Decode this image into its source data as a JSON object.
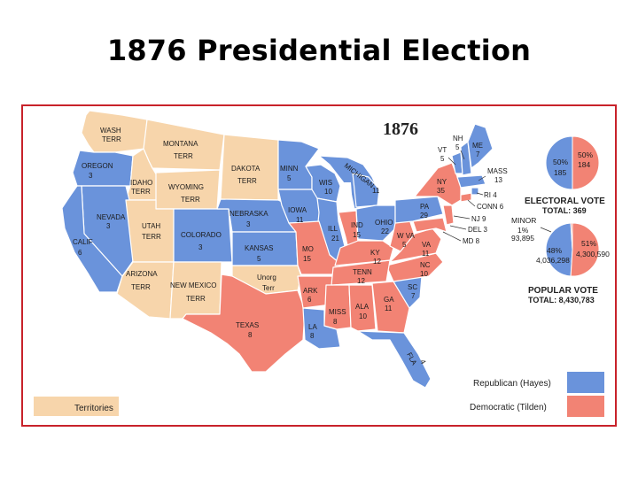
{
  "title": "1876 Presidential Election",
  "year": "1876",
  "colors": {
    "republican": "#6a93db",
    "democratic": "#f28374",
    "territory": "#f7d5ab",
    "frame": "#c8222a",
    "border": "#ffffff",
    "water": "#ffffff"
  },
  "states": {
    "wash": [
      "WASH",
      "TERR"
    ],
    "montana": [
      "MONTANA",
      "TERR"
    ],
    "oregon": [
      "OREGON",
      "3"
    ],
    "idaho": [
      "IDAHO",
      "TERR"
    ],
    "wyoming": [
      "WYOMING",
      "TERR"
    ],
    "dakota": [
      "DAKOTA",
      "TERR"
    ],
    "nevada": [
      "NEVADA",
      "3"
    ],
    "utah": [
      "UTAH",
      "TERR"
    ],
    "colorado": [
      "COLORADO",
      "3"
    ],
    "calif": [
      "CALIF",
      "6"
    ],
    "arizona": [
      "ARIZONA",
      "TERR"
    ],
    "newmexico": [
      "NEW MEXICO",
      "TERR"
    ],
    "minn": [
      "MINN",
      "5"
    ],
    "nebraska": [
      "NEBRASKA",
      "3"
    ],
    "kansas": [
      "KANSAS",
      "5"
    ],
    "iowa": [
      "IOWA",
      "11"
    ],
    "wis": [
      "WIS",
      "10"
    ],
    "mich": [
      "MICHIGAN",
      "11"
    ],
    "ill": [
      "ILL",
      "21"
    ],
    "ind": [
      "IND",
      "15"
    ],
    "ohio": [
      "OHIO",
      "22"
    ],
    "mo": [
      "MO",
      "15"
    ],
    "unorg": [
      "Unorg",
      "Terr"
    ],
    "texas": [
      "TEXAS",
      "8"
    ],
    "ark": [
      "ARK",
      "6"
    ],
    "la": [
      "LA",
      "8"
    ],
    "miss": [
      "MISS",
      "8"
    ],
    "ala": [
      "ALA",
      "10"
    ],
    "ga": [
      "GA",
      "11"
    ],
    "fla": [
      "FLA",
      "4"
    ],
    "sc": [
      "SC",
      "7"
    ],
    "nc": [
      "NC",
      "10"
    ],
    "tenn": [
      "TENN",
      "12"
    ],
    "ky": [
      "KY",
      "12"
    ],
    "wva": [
      "W VA",
      "5"
    ],
    "va": [
      "VA",
      "11"
    ],
    "pa": [
      "PA",
      "29"
    ],
    "ny": [
      "NY",
      "35"
    ],
    "vt": [
      "VT",
      "5"
    ],
    "nh": [
      "NH",
      "5"
    ],
    "me": [
      "ME",
      "7"
    ],
    "mass": [
      "MASS",
      "13"
    ],
    "ri": "RI 4",
    "conn": "CONN 6",
    "nj": "NJ 9",
    "del": "DEL 3",
    "md": "MD 8"
  },
  "electoral_vote": {
    "label": "ELECTORAL VOTE",
    "total": "TOTAL: 369",
    "republican_pct": "50%",
    "republican_votes": "185",
    "democratic_pct": "50%",
    "democratic_votes": "184",
    "republican_share": 0.5,
    "democratic_share": 0.5
  },
  "popular_vote": {
    "label": "POPULAR VOTE",
    "total": "TOTAL: 8,430,783",
    "minor_label": "MINOR",
    "minor_pct": "1%",
    "minor_votes": "93,895",
    "republican_pct": "48%",
    "republican_votes": "4,036,298",
    "democratic_pct": "51%",
    "democratic_votes": "4,300,590",
    "republican_share": 0.48,
    "democratic_share": 0.51,
    "minor_share": 0.01
  },
  "legend": {
    "territories": "Territories",
    "republican": "Republican (Hayes)",
    "democratic": "Democratic (Tilden)"
  }
}
